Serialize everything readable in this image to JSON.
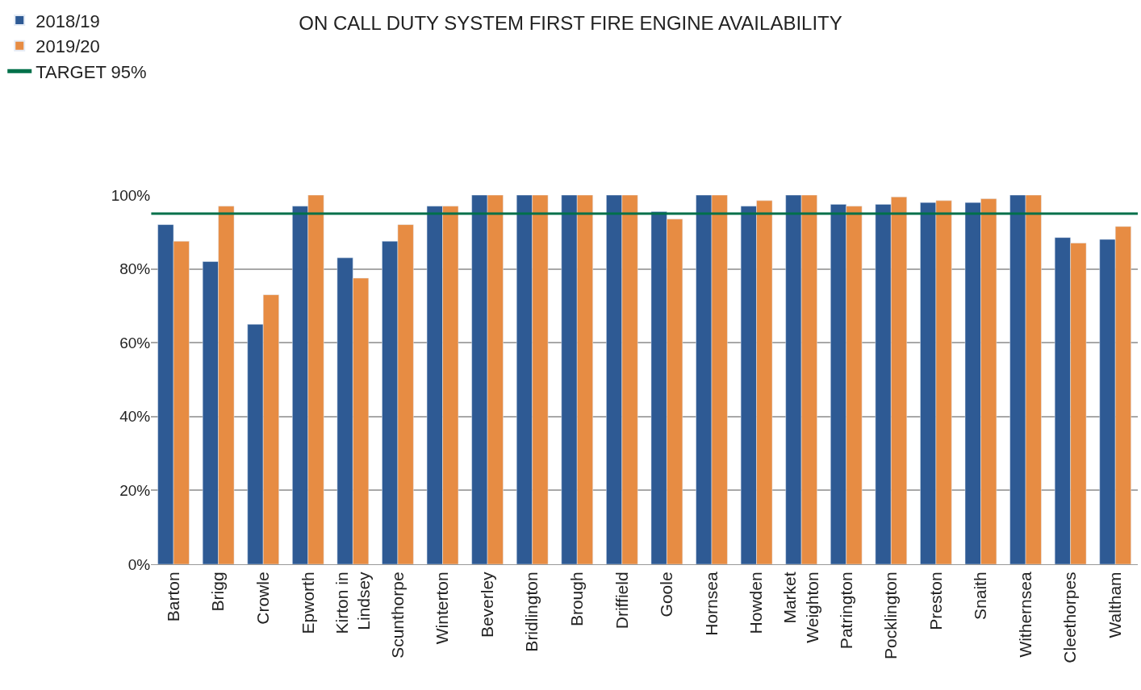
{
  "chart_data": {
    "type": "bar",
    "title": "ON CALL DUTY SYSTEM FIRST FIRE ENGINE AVAILABILITY",
    "categories": [
      "Barton",
      "Brigg",
      "Crowle",
      "Epworth",
      "Kirton in\nLindsey",
      "Scunthorpe",
      "Winterton",
      "Beverley",
      "Bridlington",
      "Brough",
      "Driffield",
      "Goole",
      "Hornsea",
      "Howden",
      "Market\nWeighton",
      "Patrington",
      "Pocklington",
      "Preston",
      "Snaith",
      "Withernsea",
      "Cleethorpes",
      "Waltham"
    ],
    "series": [
      {
        "name": "2018/19",
        "color": "#2e5a94",
        "values": [
          92,
          82,
          65,
          97,
          83,
          87.5,
          97,
          100,
          100,
          100,
          100,
          95.5,
          100,
          97,
          100,
          97.5,
          97.5,
          98,
          98,
          100,
          88.5,
          88
        ]
      },
      {
        "name": "2019/20",
        "color": "#e78c43",
        "values": [
          87.5,
          97,
          73,
          100,
          77.5,
          92,
          97,
          100,
          100,
          100,
          100,
          93.5,
          100,
          98.5,
          100,
          97,
          99.5,
          98.5,
          99,
          100,
          87,
          91.5
        ]
      }
    ],
    "ylim": [
      0,
      100
    ],
    "yticks": [
      {
        "value": 0,
        "label": "0%"
      },
      {
        "value": 20,
        "label": "20%"
      },
      {
        "value": 40,
        "label": "40%"
      },
      {
        "value": 60,
        "label": "60%"
      },
      {
        "value": 80,
        "label": "80%"
      },
      {
        "value": 100,
        "label": "100%"
      }
    ],
    "ref_lines": [
      {
        "axis": "y",
        "value": 95,
        "label": "TARGET 95%",
        "color": "#00704a"
      }
    ],
    "grid": "y",
    "legend": "top left"
  }
}
